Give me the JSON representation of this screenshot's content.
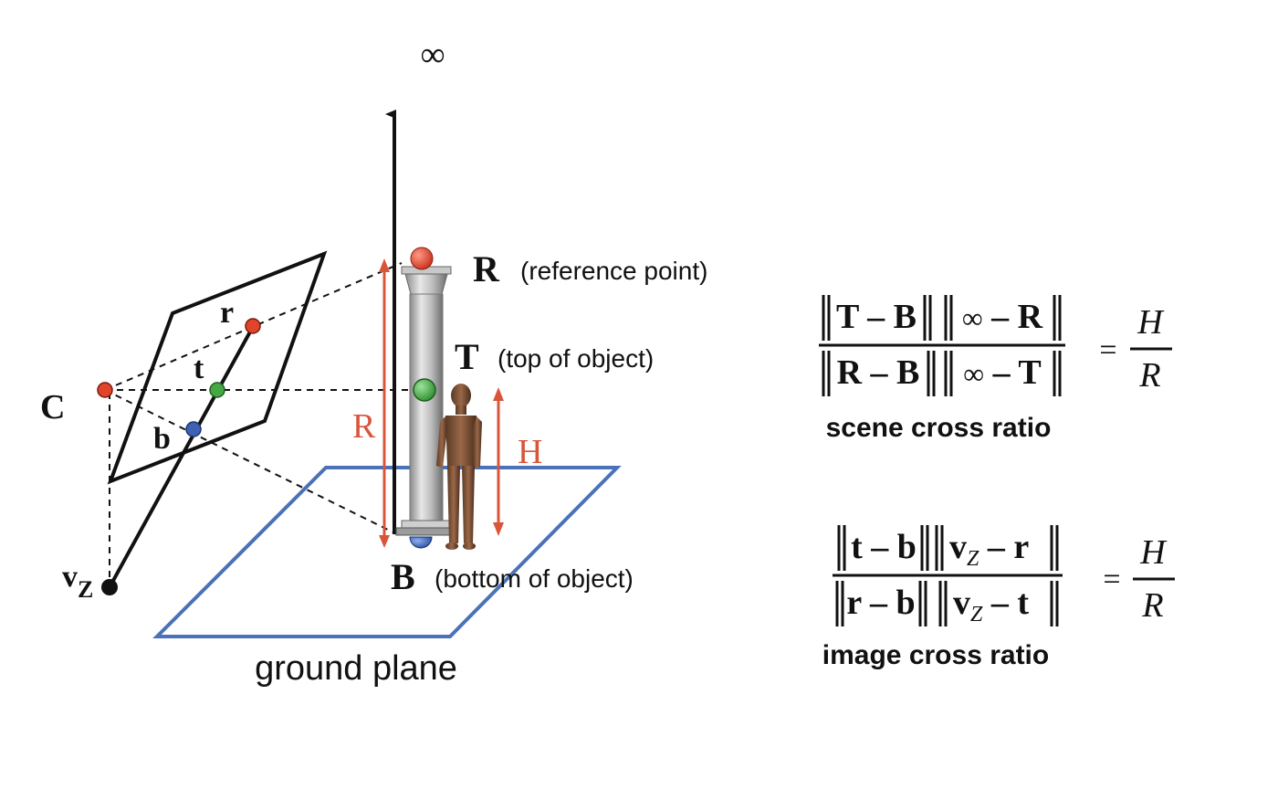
{
  "colors": {
    "red": "#e0452c",
    "green": "#45a845",
    "blue": "#3e62b2",
    "plane_blue": "#4a72b8",
    "black": "#111111",
    "arrow_red": "#d9553a"
  },
  "labels": {
    "infinity": "∞",
    "C": "C",
    "r": "r",
    "t": "t",
    "b": "b",
    "vz_v": "v",
    "vz_sub": "Z",
    "R_point": "R",
    "R_desc": "(reference point)",
    "T_point": "T",
    "T_desc": "(top of object)",
    "B_point": "B",
    "B_desc": "(bottom of object)",
    "R_height": "R",
    "H_height": "H",
    "ground_plane": "ground plane"
  },
  "scene_equation": {
    "num_left": "T – B",
    "num_right_inf": "∞",
    "num_right_rest": " – R",
    "den_left": "R – B",
    "den_right_inf": "∞",
    "den_right_rest": " – T",
    "equals": "=",
    "rhs_num": "H",
    "rhs_den": "R",
    "caption": "scene cross ratio"
  },
  "image_equation": {
    "num_left": "t – b",
    "num_right_v": "v",
    "num_right_sub": "Z",
    "num_right_rest": " – r",
    "den_left": "r – b",
    "den_right_v": "v",
    "den_right_sub": "Z",
    "den_right_rest": " – t",
    "equals": "=",
    "rhs_num": "H",
    "rhs_den": "R",
    "caption": "image cross ratio"
  }
}
